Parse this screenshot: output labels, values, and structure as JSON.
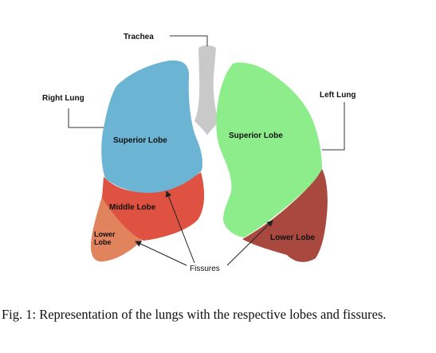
{
  "diagram": {
    "labels": {
      "trachea": "Trachea",
      "right_lung": "Right Lung",
      "left_lung": "Left Lung",
      "right_superior": "Superior Lobe",
      "right_middle": "Middle Lobe",
      "right_lower_line1": "Lower",
      "right_lower_line2": "Lobe",
      "left_superior": "Superior Lobe",
      "left_lower": "Lower Lobe",
      "fissures": "Fissures"
    },
    "colors": {
      "trachea": "#c9c9c9",
      "right_superior": "#6cb4d3",
      "right_middle": "#df5140",
      "right_lower": "#e1845d",
      "left_superior": "#8ded8a",
      "left_lower": "#a8483f"
    }
  },
  "caption": "Fig. 1: Representation of the lungs with the respective lobes and fissures."
}
